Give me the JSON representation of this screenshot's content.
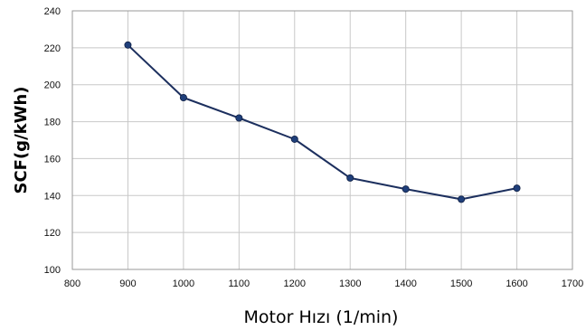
{
  "chart_data": {
    "type": "line",
    "title": "",
    "xlabel": "Motor Hızı (1/min)",
    "ylabel": "SCF(g/kWh)",
    "xlim": [
      800,
      1700
    ],
    "ylim": [
      100,
      240
    ],
    "x_ticks": [
      800,
      900,
      1000,
      1100,
      1200,
      1300,
      1400,
      1500,
      1600,
      1700
    ],
    "y_ticks": [
      100,
      120,
      140,
      160,
      180,
      200,
      220,
      240
    ],
    "grid": true,
    "legend": "none",
    "series": [
      {
        "x": [
          900,
          1000,
          1100,
          1200,
          1300,
          1400,
          1500,
          1600
        ],
        "y": [
          221.5,
          193,
          182,
          170.5,
          149.5,
          143.5,
          138,
          144
        ]
      }
    ]
  },
  "colors": {
    "line": "#1c2f5e",
    "marker": "#1f3f7a",
    "grid": "#c8c8c8",
    "frame": "#9a9a9a",
    "background": "#ffffff"
  }
}
